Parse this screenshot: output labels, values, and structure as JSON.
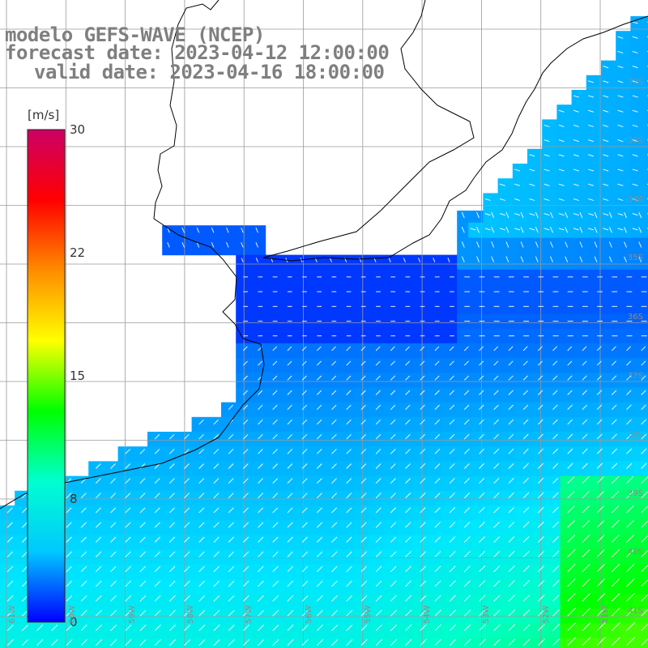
{
  "header": {
    "line1": "modelo GEFS-WAVE (NCEP)",
    "line2": "forecast date: 2023-04-12 12:00:00",
    "line3": "valid date: 2023-04-16 18:00:00"
  },
  "colorbar": {
    "unit": "[m/s]",
    "min": 0,
    "max": 30,
    "tick_labels": [
      "30",
      "22",
      "15",
      "8",
      "0"
    ],
    "tick_values": [
      30,
      22,
      15,
      8,
      0
    ],
    "colors": [
      "#0000ff",
      "#00c8ff",
      "#00ffd0",
      "#00ff00",
      "#ffff00",
      "#ff8c00",
      "#ff0000",
      "#cc0066"
    ]
  },
  "lat_labels": [
    "32S",
    "33S",
    "34S",
    "35S",
    "36S",
    "37S",
    "38S",
    "39S",
    "40S",
    "41S"
  ],
  "lon_labels": [
    "61W",
    "60W",
    "59W",
    "58W",
    "57W",
    "56W",
    "55W",
    "54W",
    "53W",
    "52W",
    "51W"
  ]
}
